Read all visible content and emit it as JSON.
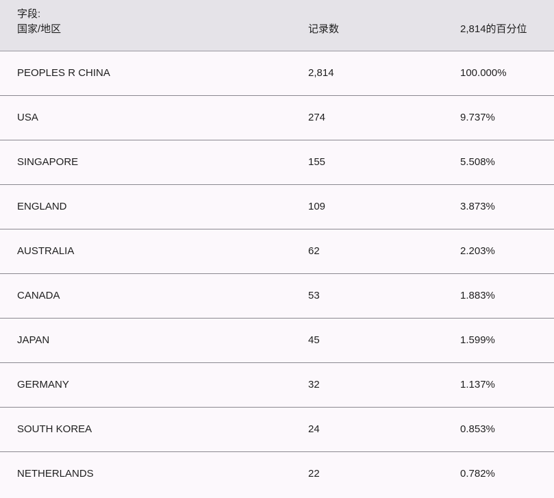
{
  "header": {
    "field_label": "字段:",
    "field_name": "国家/地区",
    "count_label": "记录数",
    "percent_label": "2,814的百分位"
  },
  "rows": [
    {
      "country": "PEOPLES R CHINA",
      "count": "2,814",
      "percent": "100.000%"
    },
    {
      "country": "USA",
      "count": "274",
      "percent": "9.737%"
    },
    {
      "country": "SINGAPORE",
      "count": "155",
      "percent": "5.508%"
    },
    {
      "country": "ENGLAND",
      "count": "109",
      "percent": "3.873%"
    },
    {
      "country": "AUSTRALIA",
      "count": "62",
      "percent": "2.203%"
    },
    {
      "country": "CANADA",
      "count": "53",
      "percent": "1.883%"
    },
    {
      "country": "JAPAN",
      "count": "45",
      "percent": "1.599%"
    },
    {
      "country": "GERMANY",
      "count": "32",
      "percent": "1.137%"
    },
    {
      "country": "SOUTH KOREA",
      "count": "24",
      "percent": "0.853%"
    },
    {
      "country": "NETHERLANDS",
      "count": "22",
      "percent": "0.782%"
    }
  ]
}
